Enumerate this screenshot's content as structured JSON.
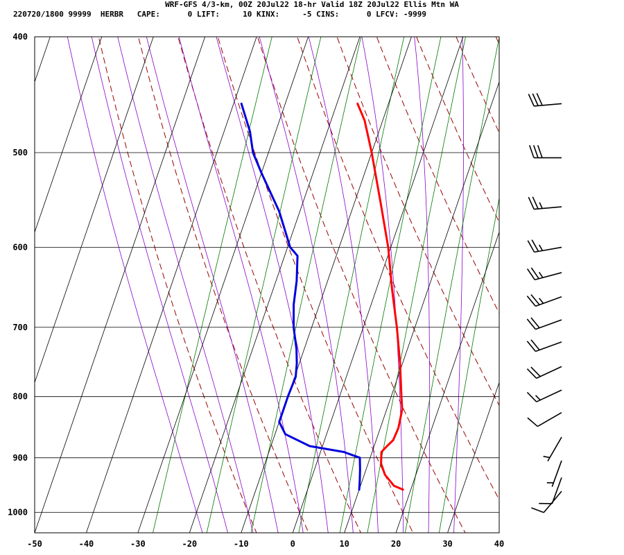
{
  "header": {
    "line1": "WRF-GFS 4/3-km, 00Z 20Jul22 18-hr Valid 18Z 20Jul22 Ellis Mtn WA",
    "line2": "220720/1800 99999  HERBR   CAPE:      0 LIFT:     10 KINX:     -5 CINS:      0 LFCV: -9999"
  },
  "chart_data": {
    "type": "line",
    "title": "WRF-GFS 4/3-km, 00Z 20Jul22 18-hr Valid 18Z 20Jul22 Ellis Mtn WA",
    "xlabel": "",
    "ylabel": "",
    "xlim": [
      -50,
      40
    ],
    "ylim": [
      1040,
      400
    ],
    "y_scale": "log",
    "grid": true,
    "x_ticks": [
      -50,
      -40,
      -30,
      -20,
      -10,
      0,
      10,
      20,
      30,
      40
    ],
    "y_ticks": [
      400,
      500,
      600,
      700,
      800,
      900,
      1000
    ],
    "colors": {
      "temperature": "#ff0000",
      "dewpoint": "#0000dd",
      "dry_adiabat": "#990000",
      "moist_adiabat": "#8800cc",
      "mixing_ratio": "#007700",
      "grid": "#000000",
      "wind": "#000000"
    },
    "series": [
      {
        "role": "temperature",
        "points": [
          {
            "p": 957,
            "t": 18.5
          },
          {
            "p": 950,
            "t": 16.5
          },
          {
            "p": 930,
            "t": 14.0
          },
          {
            "p": 910,
            "t": 12.5
          },
          {
            "p": 890,
            "t": 11.8
          },
          {
            "p": 880,
            "t": 12.5
          },
          {
            "p": 870,
            "t": 13.3
          },
          {
            "p": 850,
            "t": 13.5
          },
          {
            "p": 820,
            "t": 13.0
          },
          {
            "p": 800,
            "t": 12.0
          },
          {
            "p": 750,
            "t": 9.5
          },
          {
            "p": 700,
            "t": 6.5
          },
          {
            "p": 650,
            "t": 3.0
          },
          {
            "p": 600,
            "t": -0.5
          },
          {
            "p": 550,
            "t": -5.0
          },
          {
            "p": 500,
            "t": -10.0
          },
          {
            "p": 470,
            "t": -13.5
          },
          {
            "p": 455,
            "t": -16.0
          }
        ]
      },
      {
        "role": "dewpoint",
        "points": [
          {
            "p": 957,
            "t": 10.0
          },
          {
            "p": 940,
            "t": 9.5
          },
          {
            "p": 920,
            "t": 8.8
          },
          {
            "p": 900,
            "t": 8.0
          },
          {
            "p": 890,
            "t": 4.5
          },
          {
            "p": 880,
            "t": -2.5
          },
          {
            "p": 860,
            "t": -8.0
          },
          {
            "p": 840,
            "t": -10.0
          },
          {
            "p": 820,
            "t": -10.0
          },
          {
            "p": 800,
            "t": -10.0
          },
          {
            "p": 770,
            "t": -9.8
          },
          {
            "p": 750,
            "t": -10.5
          },
          {
            "p": 730,
            "t": -11.5
          },
          {
            "p": 700,
            "t": -13.5
          },
          {
            "p": 670,
            "t": -15.0
          },
          {
            "p": 640,
            "t": -16.0
          },
          {
            "p": 610,
            "t": -17.5
          },
          {
            "p": 600,
            "t": -19.5
          },
          {
            "p": 560,
            "t": -24.0
          },
          {
            "p": 520,
            "t": -30.0
          },
          {
            "p": 500,
            "t": -33.0
          },
          {
            "p": 480,
            "t": -35.0
          },
          {
            "p": 455,
            "t": -38.5
          }
        ]
      }
    ],
    "winds": [
      {
        "p": 960,
        "dir": 220,
        "kt": 10
      },
      {
        "p": 935,
        "dir": 200,
        "kt": 10
      },
      {
        "p": 905,
        "dir": 200,
        "kt": 5
      },
      {
        "p": 865,
        "dir": 210,
        "kt": 5
      },
      {
        "p": 825,
        "dir": 240,
        "kt": 10
      },
      {
        "p": 790,
        "dir": 245,
        "kt": 15
      },
      {
        "p": 755,
        "dir": 245,
        "kt": 20
      },
      {
        "p": 720,
        "dir": 250,
        "kt": 20
      },
      {
        "p": 690,
        "dir": 250,
        "kt": 20
      },
      {
        "p": 660,
        "dir": 250,
        "kt": 25
      },
      {
        "p": 630,
        "dir": 255,
        "kt": 25
      },
      {
        "p": 600,
        "dir": 260,
        "kt": 25
      },
      {
        "p": 555,
        "dir": 265,
        "kt": 25
      },
      {
        "p": 505,
        "dir": 270,
        "kt": 30
      },
      {
        "p": 455,
        "dir": 265,
        "kt": 30
      }
    ],
    "dry_adiabats_theta_c": [
      -10,
      0,
      10,
      20,
      30,
      40,
      50,
      60,
      70,
      80,
      90,
      100,
      110
    ],
    "moist_adiabats_tw_c": [
      -20,
      -15,
      -10,
      -5,
      0,
      5,
      10,
      15,
      20,
      25,
      30
    ],
    "mixing_ratio_lines_gkg": [
      0.4,
      1,
      2,
      4,
      7,
      10,
      16,
      24
    ]
  }
}
